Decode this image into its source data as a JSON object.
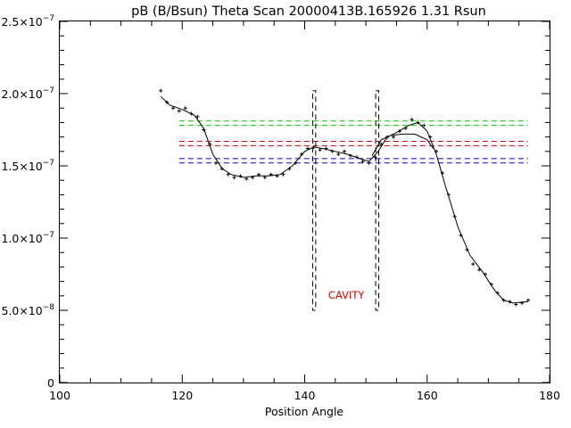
{
  "chart_data": {
    "type": "scatter",
    "title": "pB (B/Bsun) Theta Scan 20000413B.165926 1.31 Rsun",
    "xlabel": "Position Angle",
    "ylabel": "",
    "xlim": [
      100,
      180
    ],
    "ylim": [
      0,
      2.5e-07
    ],
    "grid": false,
    "x_ticks": [
      {
        "value": 100,
        "label": "100"
      },
      {
        "value": 120,
        "label": "120"
      },
      {
        "value": 140,
        "label": "140"
      },
      {
        "value": 160,
        "label": "160"
      },
      {
        "value": 180,
        "label": "180"
      }
    ],
    "x_minor_step": 5,
    "y_ticks": [
      {
        "value": 0,
        "mant": "0",
        "exp": ""
      },
      {
        "value": 5e-08,
        "mant": "5.0×10",
        "exp": "−8"
      },
      {
        "value": 1e-07,
        "mant": "1.0×10",
        "exp": "−7"
      },
      {
        "value": 1.5e-07,
        "mant": "1.5×10",
        "exp": "−7"
      },
      {
        "value": 2e-07,
        "mant": "2.0×10",
        "exp": "−7"
      },
      {
        "value": 2.5e-07,
        "mant": "2.5×10",
        "exp": "−7"
      }
    ],
    "y_minor_step": 1e-08,
    "series": [
      {
        "style": "plus-markers",
        "color": "#000000",
        "values": [
          [
            116.5,
            2.02e-07
          ],
          [
            117.5,
            1.94e-07
          ],
          [
            118.5,
            1.9e-07
          ],
          [
            119.5,
            1.88e-07
          ],
          [
            120.5,
            1.9e-07
          ],
          [
            121.5,
            1.86e-07
          ],
          [
            122.5,
            1.84e-07
          ],
          [
            123.5,
            1.75e-07
          ],
          [
            124.5,
            1.65e-07
          ],
          [
            125.5,
            1.52e-07
          ],
          [
            126.5,
            1.48e-07
          ],
          [
            127.5,
            1.44e-07
          ],
          [
            128.5,
            1.42e-07
          ],
          [
            129.5,
            1.43e-07
          ],
          [
            130.5,
            1.41e-07
          ],
          [
            131.5,
            1.42e-07
          ],
          [
            132.5,
            1.44e-07
          ],
          [
            133.5,
            1.42e-07
          ],
          [
            134.5,
            1.44e-07
          ],
          [
            135.5,
            1.43e-07
          ],
          [
            136.5,
            1.44e-07
          ],
          [
            137.5,
            1.48e-07
          ],
          [
            138.5,
            1.52e-07
          ],
          [
            139.5,
            1.58e-07
          ],
          [
            140.5,
            1.62e-07
          ],
          [
            141.5,
            1.63e-07
          ],
          [
            142.5,
            1.61e-07
          ],
          [
            143.5,
            1.62e-07
          ],
          [
            144.5,
            1.6e-07
          ],
          [
            145.5,
            1.58e-07
          ],
          [
            146.5,
            1.6e-07
          ],
          [
            147.5,
            1.57e-07
          ],
          [
            148.5,
            1.56e-07
          ],
          [
            149.5,
            1.53e-07
          ],
          [
            150.5,
            1.52e-07
          ],
          [
            151.5,
            1.56e-07
          ],
          [
            152.5,
            1.65e-07
          ],
          [
            153.5,
            1.7e-07
          ],
          [
            154.5,
            1.7e-07
          ],
          [
            155.5,
            1.74e-07
          ],
          [
            156.5,
            1.76e-07
          ],
          [
            157.5,
            1.82e-07
          ],
          [
            158.5,
            1.8e-07
          ],
          [
            159.5,
            1.78e-07
          ],
          [
            160.5,
            1.7e-07
          ],
          [
            161.5,
            1.6e-07
          ],
          [
            162.5,
            1.45e-07
          ],
          [
            163.5,
            1.3e-07
          ],
          [
            164.5,
            1.15e-07
          ],
          [
            165.5,
            1.02e-07
          ],
          [
            166.5,
            9.2e-08
          ],
          [
            167.5,
            8.2e-08
          ],
          [
            168.5,
            7.8e-08
          ],
          [
            169.5,
            7.5e-08
          ],
          [
            170.5,
            6.8e-08
          ],
          [
            171.5,
            6.2e-08
          ],
          [
            172.5,
            5.7e-08
          ],
          [
            173.5,
            5.6e-08
          ],
          [
            174.5,
            5.4e-08
          ],
          [
            175.5,
            5.5e-08
          ],
          [
            176.5,
            5.7e-08
          ]
        ]
      },
      {
        "style": "line",
        "color": "#000000",
        "values": [
          [
            116.5,
            1.98e-07
          ],
          [
            118,
            1.92e-07
          ],
          [
            120,
            1.89e-07
          ],
          [
            122,
            1.85e-07
          ],
          [
            123.5,
            1.76e-07
          ],
          [
            125,
            1.58e-07
          ],
          [
            126.5,
            1.48e-07
          ],
          [
            128,
            1.44e-07
          ],
          [
            130,
            1.42e-07
          ],
          [
            132,
            1.43e-07
          ],
          [
            134,
            1.43e-07
          ],
          [
            136,
            1.44e-07
          ],
          [
            138,
            1.5e-07
          ],
          [
            140,
            1.6e-07
          ],
          [
            141.5,
            1.63e-07
          ],
          [
            143,
            1.62e-07
          ],
          [
            145,
            1.6e-07
          ],
          [
            147,
            1.58e-07
          ],
          [
            149,
            1.55e-07
          ],
          [
            150.5,
            1.53e-07
          ],
          [
            152,
            1.6e-07
          ],
          [
            153.5,
            1.7e-07
          ],
          [
            155,
            1.73e-07
          ],
          [
            157,
            1.78e-07
          ],
          [
            158.5,
            1.8e-07
          ],
          [
            160,
            1.74e-07
          ],
          [
            161.5,
            1.58e-07
          ],
          [
            163,
            1.36e-07
          ],
          [
            165,
            1.08e-07
          ],
          [
            167,
            8.8e-08
          ],
          [
            169,
            7.7e-08
          ],
          [
            171,
            6.4e-08
          ],
          [
            172.5,
            5.7e-08
          ],
          [
            174,
            5.5e-08
          ],
          [
            176.5,
            5.6e-08
          ]
        ]
      },
      {
        "style": "line",
        "color": "#000000",
        "values": [
          [
            151,
            1.57e-07
          ],
          [
            152.5,
            1.68e-07
          ],
          [
            154,
            1.71e-07
          ],
          [
            156,
            1.72e-07
          ],
          [
            158,
            1.72e-07
          ],
          [
            160,
            1.68e-07
          ],
          [
            161,
            1.62e-07
          ]
        ]
      }
    ],
    "reference_lines": [
      {
        "color": "#00cc00",
        "values": [
          1.81e-07,
          1.78e-07
        ],
        "xrange": [
          119.5,
          176.5
        ]
      },
      {
        "color": "#cc0000",
        "values": [
          1.67e-07,
          1.64e-07
        ],
        "xrange": [
          119.5,
          176.5
        ]
      },
      {
        "color": "#0000cc",
        "values": [
          1.55e-07,
          1.52e-07
        ],
        "xrange": [
          119.5,
          176.5
        ]
      }
    ],
    "boxes": [
      {
        "xrange": [
          141.3,
          141.8
        ],
        "yrange": [
          5e-08,
          2.02e-07
        ]
      },
      {
        "xrange": [
          151.6,
          152.1
        ],
        "yrange": [
          5e-08,
          2.02e-07
        ]
      }
    ],
    "annotations": [
      {
        "text": "CAVITY",
        "x": 146.8,
        "y": 5.8e-08,
        "color": "#d40000"
      }
    ]
  }
}
